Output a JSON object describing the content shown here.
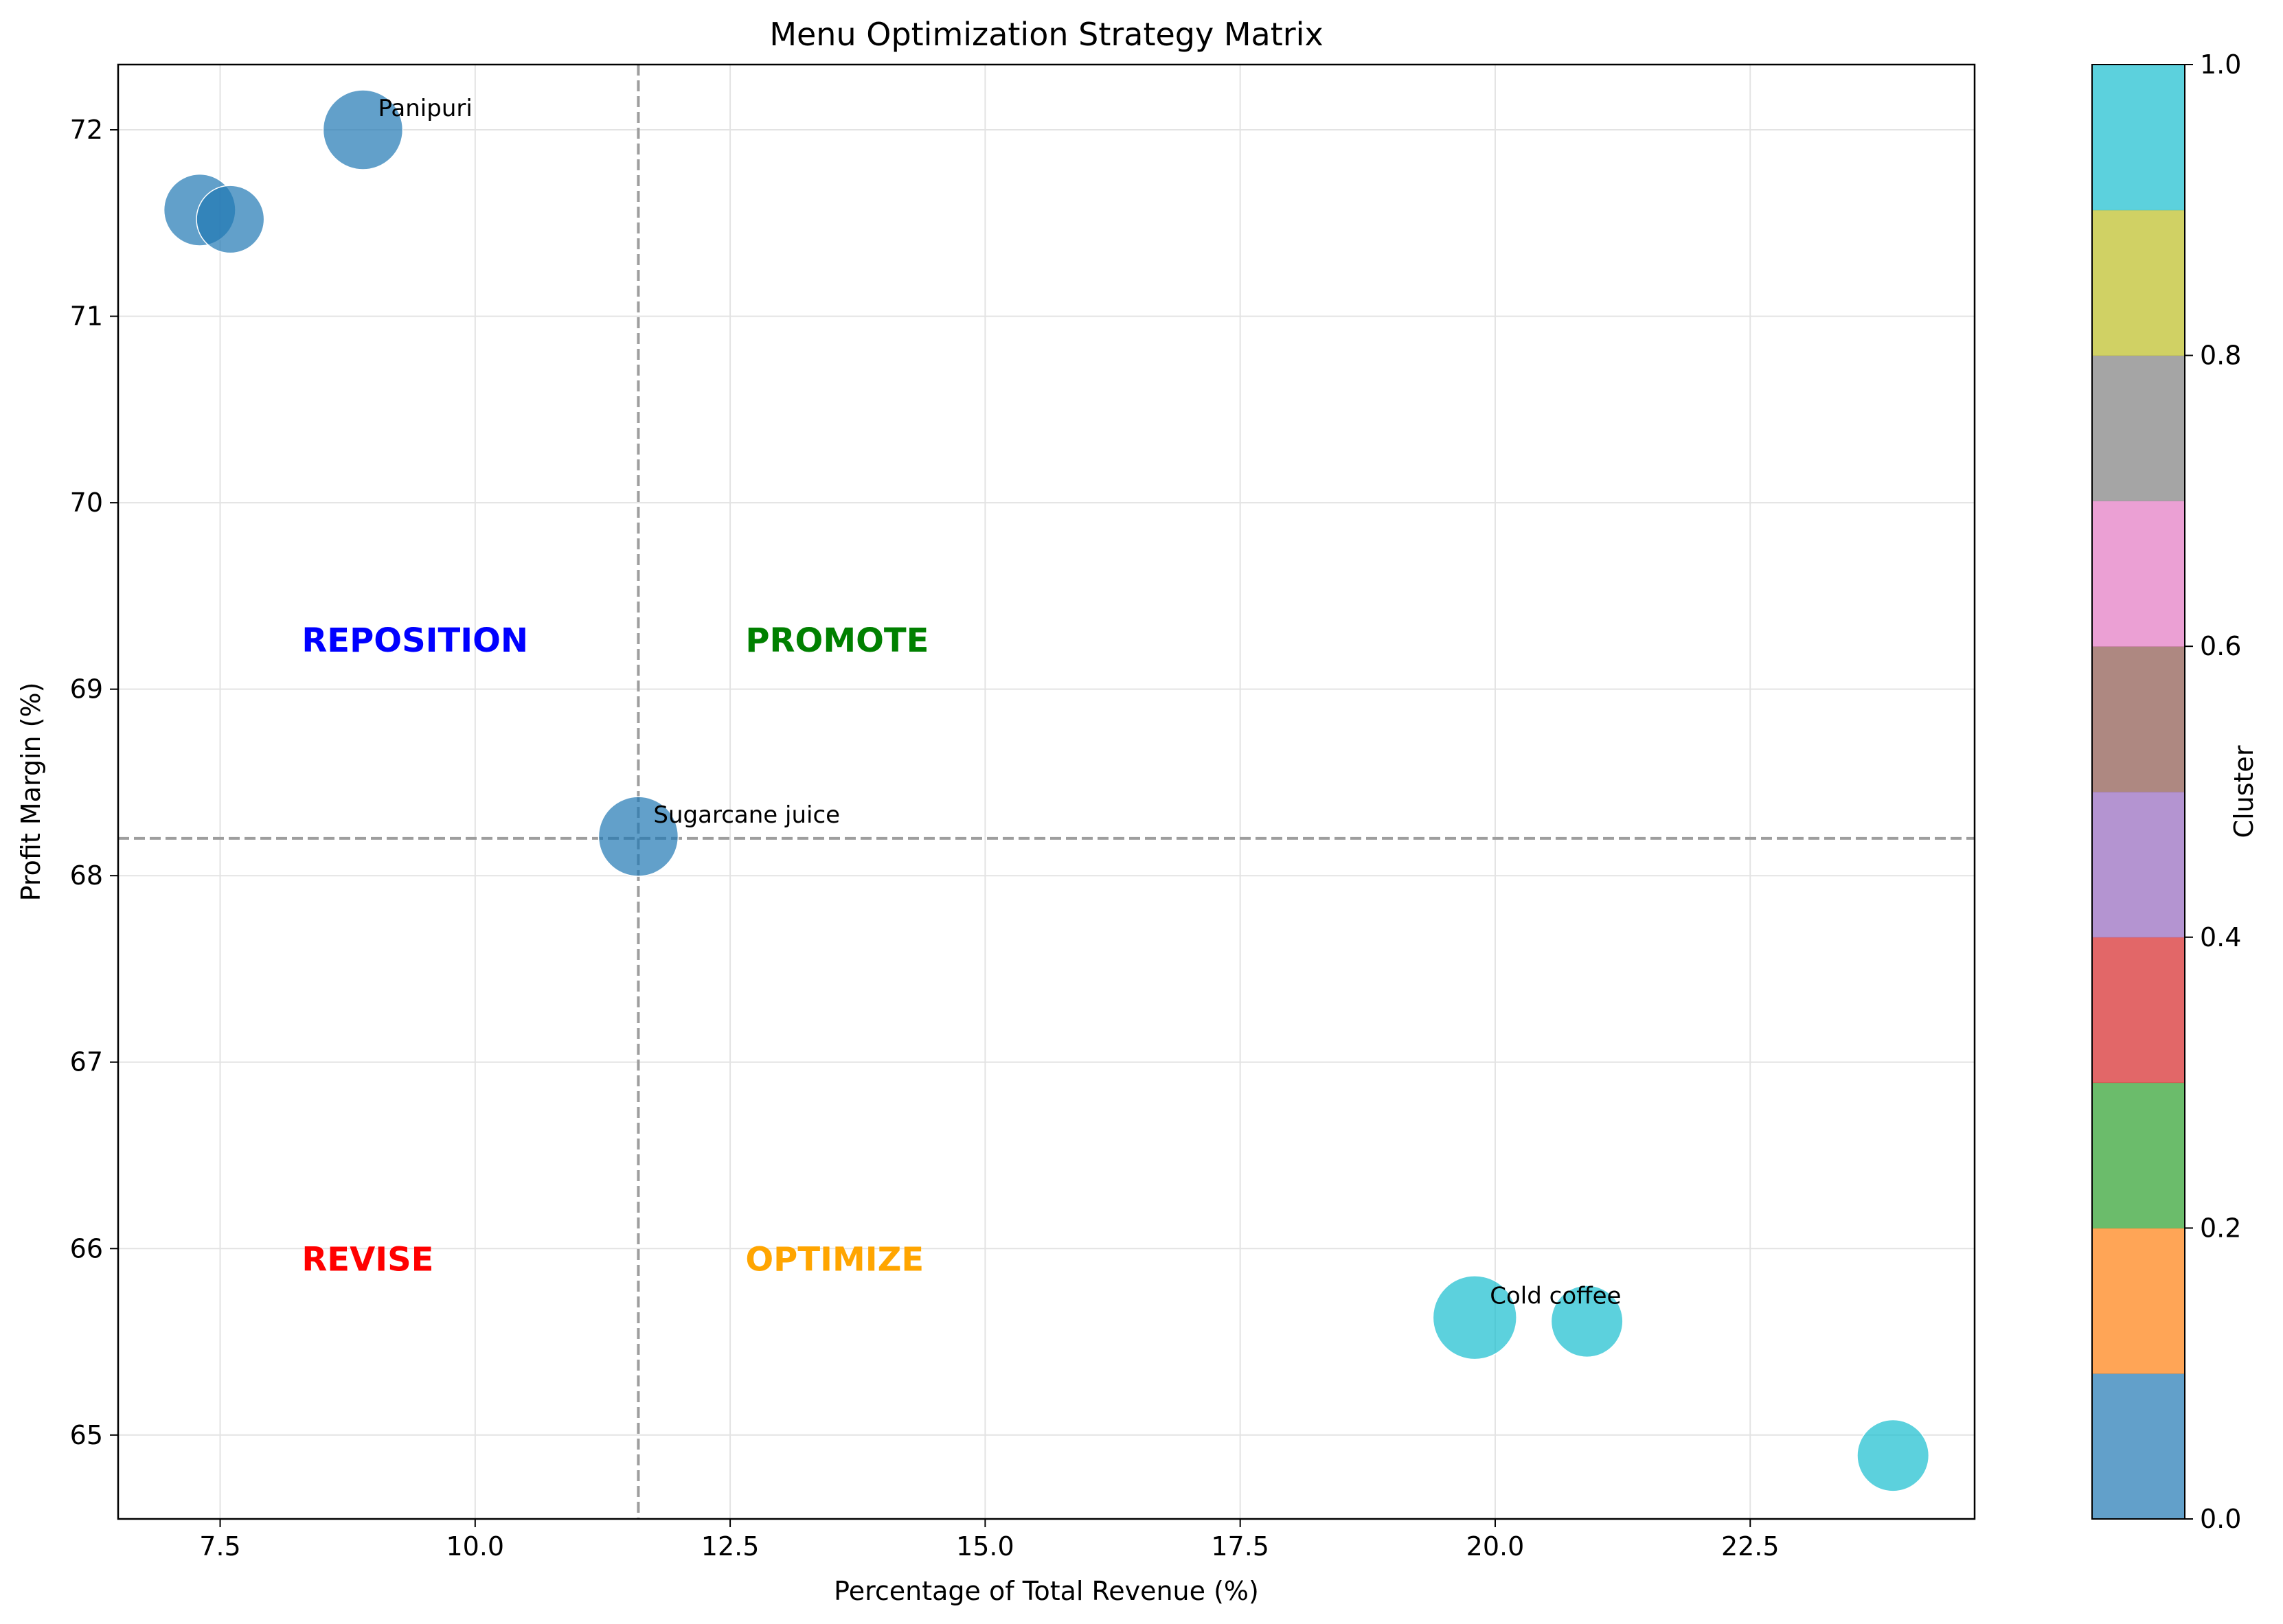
{
  "chart_data": {
    "type": "scatter",
    "title": "Menu Optimization Strategy Matrix",
    "xlabel": "Percentage of Total Revenue (%)",
    "ylabel": "Profit Margin (%)",
    "xlim": [
      6.5,
      24.7
    ],
    "ylim": [
      64.55,
      72.35
    ],
    "x_ticks": [
      7.5,
      10.0,
      12.5,
      15.0,
      17.5,
      20.0,
      22.5
    ],
    "x_tick_labels": [
      "7.5",
      "10.0",
      "12.5",
      "15.0",
      "17.5",
      "20.0",
      "22.5"
    ],
    "y_ticks": [
      65,
      66,
      67,
      68,
      69,
      70,
      71,
      72
    ],
    "y_tick_labels": [
      "65",
      "66",
      "67",
      "68",
      "69",
      "70",
      "71",
      "72"
    ],
    "grid": true,
    "reference_lines": {
      "x": 11.6,
      "y": 68.2
    },
    "points": [
      {
        "x": 7.3,
        "y": 71.57,
        "size": 0.9,
        "cluster": 0,
        "label": ""
      },
      {
        "x": 7.6,
        "y": 71.52,
        "size": 0.85,
        "cluster": 0,
        "label": ""
      },
      {
        "x": 8.9,
        "y": 72.0,
        "size": 1.0,
        "cluster": 0,
        "label": "Panipuri"
      },
      {
        "x": 11.6,
        "y": 68.21,
        "size": 1.0,
        "cluster": 0,
        "label": "Sugarcane juice"
      },
      {
        "x": 19.8,
        "y": 65.63,
        "size": 1.05,
        "cluster": 1,
        "label": "Cold coffee"
      },
      {
        "x": 20.9,
        "y": 65.61,
        "size": 0.9,
        "cluster": 1,
        "label": ""
      },
      {
        "x": 23.9,
        "y": 64.89,
        "size": 0.9,
        "cluster": 1,
        "label": ""
      }
    ],
    "quadrant_labels": [
      {
        "text": "REPOSITION",
        "x": 8.3,
        "y": 69.25,
        "color": "#0000ff"
      },
      {
        "text": "PROMOTE",
        "x": 12.65,
        "y": 69.25,
        "color": "#008000"
      },
      {
        "text": "REVISE",
        "x": 8.3,
        "y": 65.93,
        "color": "#ff0000"
      },
      {
        "text": "OPTIMIZE",
        "x": 12.65,
        "y": 65.93,
        "color": "#ffa500"
      }
    ],
    "colorbar": {
      "label": "Cluster",
      "range": [
        0,
        1
      ],
      "ticks": [
        0.0,
        0.2,
        0.4,
        0.6,
        0.8,
        1.0
      ],
      "tick_labels": [
        "0.0",
        "0.2",
        "0.4",
        "0.6",
        "0.8",
        "1.0"
      ],
      "colors": [
        "#1f77b4",
        "#ff7f0e",
        "#2ca02c",
        "#d62728",
        "#9467bd",
        "#8c564b",
        "#e377c2",
        "#7f7f7f",
        "#bcbd22",
        "#17becf"
      ]
    }
  }
}
